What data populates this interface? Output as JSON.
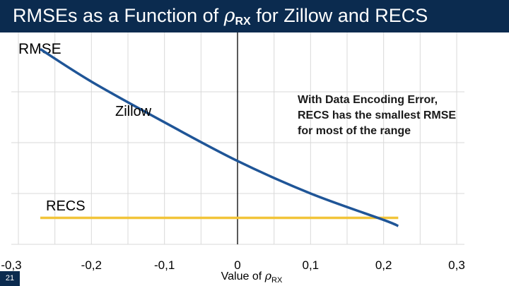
{
  "title": {
    "prefix": "RMSEs as a Function of ",
    "symbol": "ρ",
    "subscript": "RX",
    "suffix": " for Zillow and RECS"
  },
  "slide_number": "21",
  "colors": {
    "title_bar": "#0b2b4f",
    "zillow_line": "#1f5597",
    "recs_line": "#f2c43a",
    "grid": "#d9d9d9",
    "axis": "#000000"
  },
  "chart_data": {
    "type": "line",
    "ylabel": "RMSE",
    "xlabel": {
      "text": "Value of ",
      "symbol": "ρ",
      "subscript": "RX"
    },
    "xlim": [
      -0.3,
      0.3
    ],
    "ylim": [
      0,
      1
    ],
    "x_ticks": [
      -0.3,
      -0.2,
      -0.1,
      0,
      0.1,
      0.2,
      0.3
    ],
    "x_tick_labels": [
      "-0,3",
      "-0,2",
      "-0,1",
      "0",
      "0,1",
      "0,2",
      "0,3"
    ],
    "grid": true,
    "series": [
      {
        "name": "Zillow",
        "color": "#1f5597",
        "x": [
          -0.27,
          -0.2,
          -0.1,
          0,
          0.1,
          0.2,
          0.22
        ],
        "y": [
          0.96,
          0.8,
          0.6,
          0.41,
          0.25,
          0.12,
          0.09
        ]
      },
      {
        "name": "RECS",
        "color": "#f2c43a",
        "x": [
          -0.27,
          0.22
        ],
        "y": [
          0.13,
          0.13
        ]
      }
    ],
    "annotation": {
      "lines": [
        "With Data Encoding Error,",
        "RECS has the smallest RMSE",
        "for most of the range"
      ]
    }
  }
}
